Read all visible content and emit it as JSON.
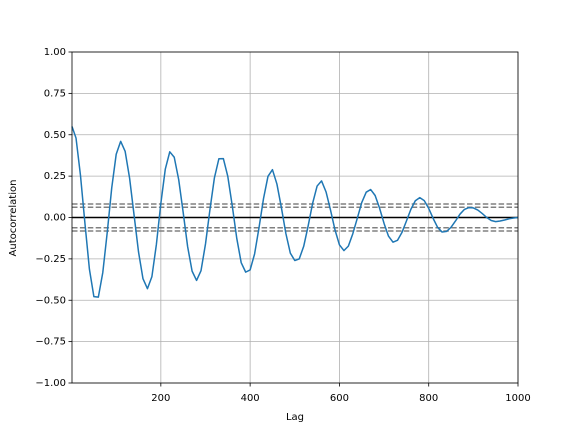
{
  "chart_data": {
    "type": "line",
    "xlabel": "Lag",
    "ylabel": "Autocorrelation",
    "x": [
      1,
      10,
      20,
      30,
      40,
      50,
      60,
      70,
      80,
      90,
      100,
      110,
      120,
      130,
      140,
      150,
      160,
      170,
      180,
      190,
      200,
      210,
      220,
      230,
      240,
      250,
      260,
      270,
      280,
      290,
      300,
      310,
      320,
      330,
      340,
      350,
      360,
      370,
      380,
      390,
      400,
      410,
      420,
      430,
      440,
      450,
      460,
      470,
      480,
      490,
      500,
      510,
      520,
      530,
      540,
      550,
      560,
      570,
      580,
      590,
      600,
      610,
      620,
      630,
      640,
      650,
      660,
      670,
      680,
      690,
      700,
      710,
      720,
      730,
      740,
      750,
      760,
      770,
      780,
      790,
      800,
      810,
      820,
      830,
      840,
      850,
      860,
      870,
      880,
      890,
      900,
      910,
      920,
      930,
      940,
      950,
      960,
      970,
      980,
      990,
      1000
    ],
    "series": [
      {
        "color": "#1f77b4",
        "values": [
          0.55,
          0.48,
          0.254,
          -0.036,
          -0.312,
          -0.478,
          -0.481,
          -0.332,
          -0.088,
          0.179,
          0.382,
          0.46,
          0.4,
          0.238,
          0.015,
          -0.208,
          -0.37,
          -0.43,
          -0.357,
          -0.163,
          0.085,
          0.293,
          0.397,
          0.364,
          0.229,
          0.031,
          -0.176,
          -0.324,
          -0.38,
          -0.321,
          -0.16,
          0.048,
          0.24,
          0.355,
          0.356,
          0.248,
          0.07,
          -0.125,
          -0.273,
          -0.33,
          -0.317,
          -0.22,
          -0.06,
          0.115,
          0.249,
          0.289,
          0.202,
          0.06,
          -0.096,
          -0.215,
          -0.26,
          -0.25,
          -0.174,
          -0.05,
          0.086,
          0.19,
          0.221,
          0.155,
          0.046,
          -0.074,
          -0.165,
          -0.2,
          -0.173,
          -0.098,
          -0.005,
          0.09,
          0.153,
          0.169,
          0.133,
          0.056,
          -0.036,
          -0.113,
          -0.149,
          -0.138,
          -0.091,
          -0.022,
          0.049,
          0.101,
          0.12,
          0.102,
          0.055,
          -0.006,
          -0.06,
          -0.088,
          -0.084,
          -0.059,
          -0.021,
          0.02,
          0.049,
          0.06,
          0.058,
          0.045,
          0.024,
          0.0,
          -0.018,
          -0.025,
          -0.021,
          -0.015,
          -0.008,
          -0.003,
          0.0
        ]
      }
    ],
    "hlines": [
      {
        "value": 0.0815,
        "color": "#808080",
        "style": "dashed"
      },
      {
        "value": 0.062,
        "color": "#808080",
        "style": "dashed"
      },
      {
        "value": 0,
        "color": "#000000",
        "style": "solid"
      },
      {
        "value": -0.062,
        "color": "#808080",
        "style": "dashed"
      },
      {
        "value": -0.0815,
        "color": "#808080",
        "style": "dashed"
      }
    ],
    "xlim": [
      1,
      1000
    ],
    "xticks": [
      200,
      400,
      600,
      800,
      1000
    ],
    "ylim": [
      -1,
      1
    ],
    "yticks": [
      {
        "value": -1,
        "label": "−1.00"
      },
      {
        "value": -0.75,
        "label": "−0.75"
      },
      {
        "value": -0.5,
        "label": "−0.50"
      },
      {
        "value": -0.25,
        "label": "−0.25"
      },
      {
        "value": 0,
        "label": "0.00"
      },
      {
        "value": 0.25,
        "label": "0.25"
      },
      {
        "value": 0.5,
        "label": "0.50"
      },
      {
        "value": 0.75,
        "label": "0.75"
      },
      {
        "value": 1,
        "label": "1.00"
      }
    ],
    "grid": true
  }
}
